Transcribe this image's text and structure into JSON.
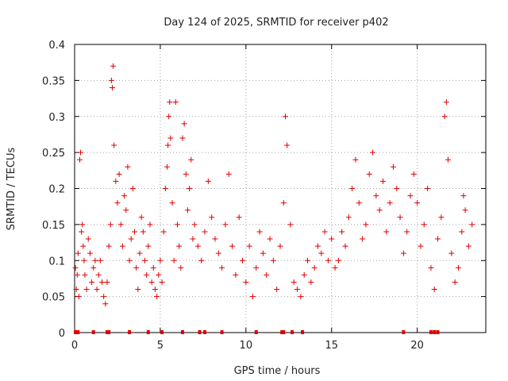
{
  "chart_data": {
    "type": "scatter",
    "title": "Day 124 of 2025, SRMTID for receiver p402",
    "xlabel": "GPS time / hours",
    "ylabel": "SRMTID / TECUs",
    "xlim": [
      0,
      24
    ],
    "ylim": [
      0,
      0.4
    ],
    "xticks": [
      0,
      5,
      10,
      15,
      20
    ],
    "xtick_labels": [
      "0",
      "5",
      "10",
      "15",
      "20"
    ],
    "yticks": [
      0,
      0.05,
      0.1,
      0.15,
      0.2,
      0.25,
      0.3,
      0.35,
      0.4
    ],
    "ytick_labels": [
      "0",
      "0.05",
      "0.1",
      "0.15",
      "0.2",
      "0.25",
      "0.3",
      "0.35",
      "0.4"
    ],
    "grid": true,
    "marker": "plus",
    "color": "#e00000",
    "series": [
      {
        "name": "SRMTID",
        "points": [
          [
            0.05,
            0.09
          ],
          [
            0.1,
            0.06
          ],
          [
            0.15,
            0.08
          ],
          [
            0.2,
            0.11
          ],
          [
            0.25,
            0.05
          ],
          [
            0.3,
            0.24
          ],
          [
            0.35,
            0.25
          ],
          [
            0.4,
            0.14
          ],
          [
            0.45,
            0.15
          ],
          [
            0.5,
            0.12
          ],
          [
            0.55,
            0.1
          ],
          [
            0.6,
            0.08
          ],
          [
            0.7,
            0.06
          ],
          [
            0.8,
            0.13
          ],
          [
            0.9,
            0.11
          ],
          [
            1.0,
            0.07
          ],
          [
            1.1,
            0.09
          ],
          [
            1.2,
            0.1
          ],
          [
            1.3,
            0.06
          ],
          [
            1.4,
            0.08
          ],
          [
            1.5,
            0.1
          ],
          [
            1.6,
            0.07
          ],
          [
            1.7,
            0.05
          ],
          [
            1.8,
            0.04
          ],
          [
            1.9,
            0.07
          ],
          [
            2.0,
            0.12
          ],
          [
            2.1,
            0.15
          ],
          [
            2.15,
            0.35
          ],
          [
            2.2,
            0.34
          ],
          [
            2.25,
            0.37
          ],
          [
            2.3,
            0.26
          ],
          [
            2.4,
            0.21
          ],
          [
            2.5,
            0.18
          ],
          [
            2.6,
            0.22
          ],
          [
            2.7,
            0.15
          ],
          [
            2.8,
            0.12
          ],
          [
            2.9,
            0.19
          ],
          [
            3.0,
            0.17
          ],
          [
            3.1,
            0.23
          ],
          [
            3.2,
            0.1
          ],
          [
            3.3,
            0.13
          ],
          [
            3.4,
            0.2
          ],
          [
            3.5,
            0.14
          ],
          [
            3.6,
            0.09
          ],
          [
            3.7,
            0.06
          ],
          [
            3.8,
            0.11
          ],
          [
            3.9,
            0.16
          ],
          [
            4.0,
            0.14
          ],
          [
            4.1,
            0.1
          ],
          [
            4.2,
            0.08
          ],
          [
            4.3,
            0.12
          ],
          [
            4.4,
            0.15
          ],
          [
            4.5,
            0.07
          ],
          [
            4.6,
            0.09
          ],
          [
            4.7,
            0.06
          ],
          [
            4.8,
            0.05
          ],
          [
            4.9,
            0.08
          ],
          [
            5.0,
            0.1
          ],
          [
            5.1,
            0.07
          ],
          [
            5.2,
            0.14
          ],
          [
            5.3,
            0.2
          ],
          [
            5.4,
            0.23
          ],
          [
            5.45,
            0.26
          ],
          [
            5.5,
            0.3
          ],
          [
            5.55,
            0.32
          ],
          [
            5.6,
            0.27
          ],
          [
            5.7,
            0.18
          ],
          [
            5.8,
            0.1
          ],
          [
            5.9,
            0.32
          ],
          [
            6.0,
            0.15
          ],
          [
            6.1,
            0.12
          ],
          [
            6.2,
            0.09
          ],
          [
            6.3,
            0.27
          ],
          [
            6.4,
            0.29
          ],
          [
            6.5,
            0.22
          ],
          [
            6.6,
            0.17
          ],
          [
            6.7,
            0.2
          ],
          [
            6.8,
            0.24
          ],
          [
            6.9,
            0.13
          ],
          [
            7.0,
            0.15
          ],
          [
            7.2,
            0.12
          ],
          [
            7.4,
            0.1
          ],
          [
            7.6,
            0.14
          ],
          [
            7.8,
            0.21
          ],
          [
            8.0,
            0.16
          ],
          [
            8.2,
            0.13
          ],
          [
            8.4,
            0.11
          ],
          [
            8.6,
            0.09
          ],
          [
            8.8,
            0.15
          ],
          [
            9.0,
            0.22
          ],
          [
            9.2,
            0.12
          ],
          [
            9.4,
            0.08
          ],
          [
            9.6,
            0.16
          ],
          [
            9.8,
            0.1
          ],
          [
            10.0,
            0.07
          ],
          [
            10.2,
            0.12
          ],
          [
            10.4,
            0.05
          ],
          [
            10.6,
            0.09
          ],
          [
            10.8,
            0.14
          ],
          [
            11.0,
            0.11
          ],
          [
            11.2,
            0.08
          ],
          [
            11.4,
            0.13
          ],
          [
            11.6,
            0.1
          ],
          [
            11.8,
            0.06
          ],
          [
            12.0,
            0.12
          ],
          [
            12.2,
            0.18
          ],
          [
            12.3,
            0.3
          ],
          [
            12.4,
            0.26
          ],
          [
            12.6,
            0.15
          ],
          [
            12.8,
            0.07
          ],
          [
            13.0,
            0.06
          ],
          [
            13.2,
            0.05
          ],
          [
            13.4,
            0.08
          ],
          [
            13.6,
            0.1
          ],
          [
            13.8,
            0.07
          ],
          [
            14.0,
            0.09
          ],
          [
            14.2,
            0.12
          ],
          [
            14.4,
            0.11
          ],
          [
            14.6,
            0.14
          ],
          [
            14.8,
            0.1
          ],
          [
            15.0,
            0.13
          ],
          [
            15.2,
            0.09
          ],
          [
            15.4,
            0.1
          ],
          [
            15.6,
            0.14
          ],
          [
            15.8,
            0.12
          ],
          [
            16.0,
            0.16
          ],
          [
            16.2,
            0.2
          ],
          [
            16.4,
            0.24
          ],
          [
            16.6,
            0.18
          ],
          [
            16.8,
            0.13
          ],
          [
            17.0,
            0.15
          ],
          [
            17.2,
            0.22
          ],
          [
            17.4,
            0.25
          ],
          [
            17.6,
            0.19
          ],
          [
            17.8,
            0.17
          ],
          [
            18.0,
            0.21
          ],
          [
            18.2,
            0.14
          ],
          [
            18.4,
            0.18
          ],
          [
            18.6,
            0.23
          ],
          [
            18.8,
            0.2
          ],
          [
            19.0,
            0.16
          ],
          [
            19.2,
            0.11
          ],
          [
            19.4,
            0.14
          ],
          [
            19.6,
            0.19
          ],
          [
            19.8,
            0.22
          ],
          [
            20.0,
            0.18
          ],
          [
            20.2,
            0.12
          ],
          [
            20.4,
            0.15
          ],
          [
            20.6,
            0.2
          ],
          [
            20.8,
            0.09
          ],
          [
            21.0,
            0.06
          ],
          [
            21.2,
            0.13
          ],
          [
            21.4,
            0.16
          ],
          [
            21.6,
            0.3
          ],
          [
            21.7,
            0.32
          ],
          [
            21.8,
            0.24
          ],
          [
            22.0,
            0.11
          ],
          [
            22.2,
            0.07
          ],
          [
            22.4,
            0.09
          ],
          [
            22.6,
            0.14
          ],
          [
            22.7,
            0.19
          ],
          [
            22.8,
            0.17
          ],
          [
            23.0,
            0.12
          ],
          [
            23.2,
            0.15
          ]
        ],
        "zero_markers": [
          0.05,
          0.1,
          0.2,
          1.1,
          1.9,
          2.0,
          3.2,
          4.3,
          5.1,
          6.3,
          7.3,
          7.6,
          8.6,
          10.6,
          12.1,
          12.2,
          12.7,
          13.3,
          19.2,
          20.8,
          21.0,
          21.2
        ]
      }
    ]
  }
}
